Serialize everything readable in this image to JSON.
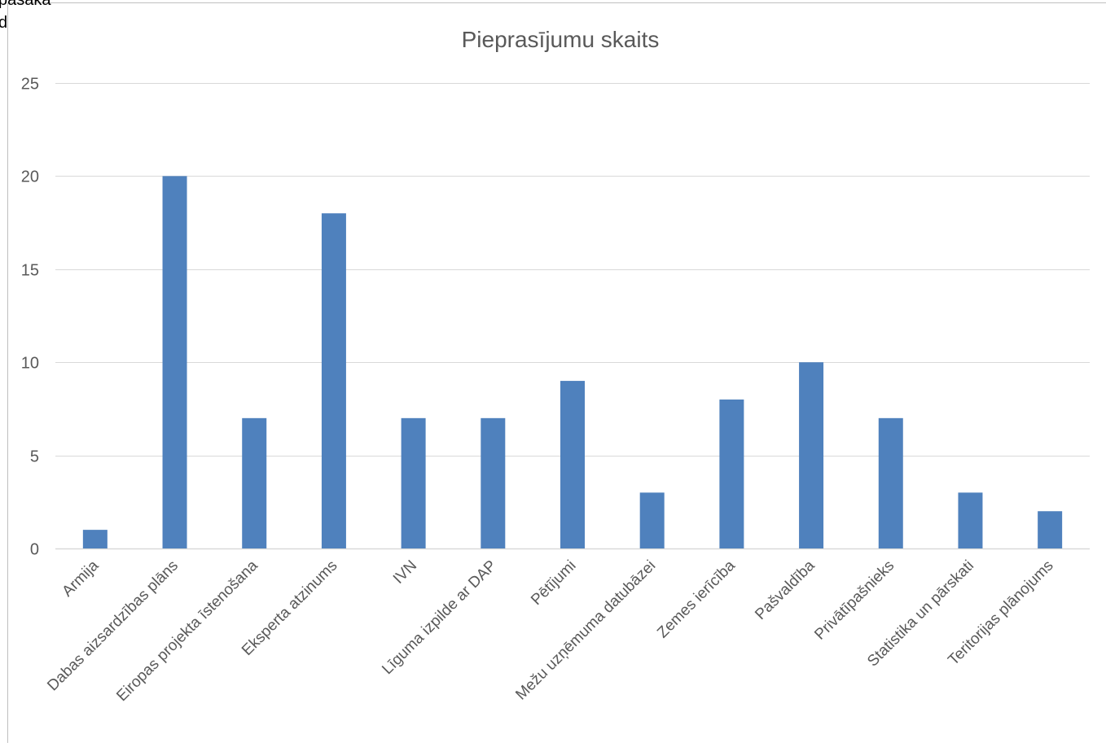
{
  "corner_fragments": [
    "pasākā",
    "d"
  ],
  "colors": {
    "bar": "#4f81bd",
    "gridline": "#d9d9d9",
    "text": "#595959",
    "frame": "#bfbfbf"
  },
  "chart_data": {
    "type": "bar",
    "title": "Pieprasījumu skaits",
    "xlabel": "",
    "ylabel": "",
    "categories": [
      "Armija",
      "Dabas aizsardzības plāns",
      "Eiropas projekta īstenošana",
      "Eksperta atzinums",
      "IVN",
      "Līguma izpilde ar DAP",
      "Pētījumi",
      "Mežu uzņēmuma datubāzei",
      "Zemes ierīcība",
      "Pašvaldība",
      "Privātīpašnieks",
      "Statistika un pārskati",
      "Teritorijas plānojums"
    ],
    "values": [
      1,
      20,
      7,
      18,
      7,
      7,
      9,
      3,
      8,
      10,
      7,
      3,
      2
    ],
    "ylim": [
      0,
      25
    ],
    "yticks": [
      0,
      5,
      10,
      15,
      20,
      25
    ],
    "grid": true,
    "legend": "none"
  }
}
